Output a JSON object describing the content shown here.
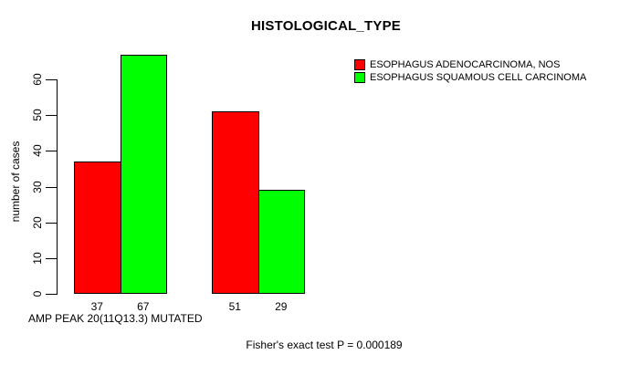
{
  "chart_data": {
    "type": "bar",
    "title": "HISTOLOGICAL_TYPE",
    "xlabel": "AMP PEAK 20(11Q13.3) MUTATED",
    "ylabel": "number of cases",
    "y_ticks": [
      0,
      10,
      20,
      30,
      40,
      50,
      60
    ],
    "ylim": [
      0,
      60
    ],
    "grid": false,
    "legend_position": "topright",
    "background_color": "#ffffff",
    "bar_border_color": "#000000",
    "series": [
      {
        "name": "ESOPHAGUS ADENOCARCINOMA, NOS",
        "color": "#ff0000",
        "values": [
          37,
          51
        ]
      },
      {
        "name": "ESOPHAGUS SQUAMOUS CELL CARCINOMA",
        "color": "#00ff00",
        "values": [
          67,
          29
        ]
      }
    ],
    "show_value_labels": true,
    "annotation": "Fisher's exact test P = 0.000189"
  }
}
